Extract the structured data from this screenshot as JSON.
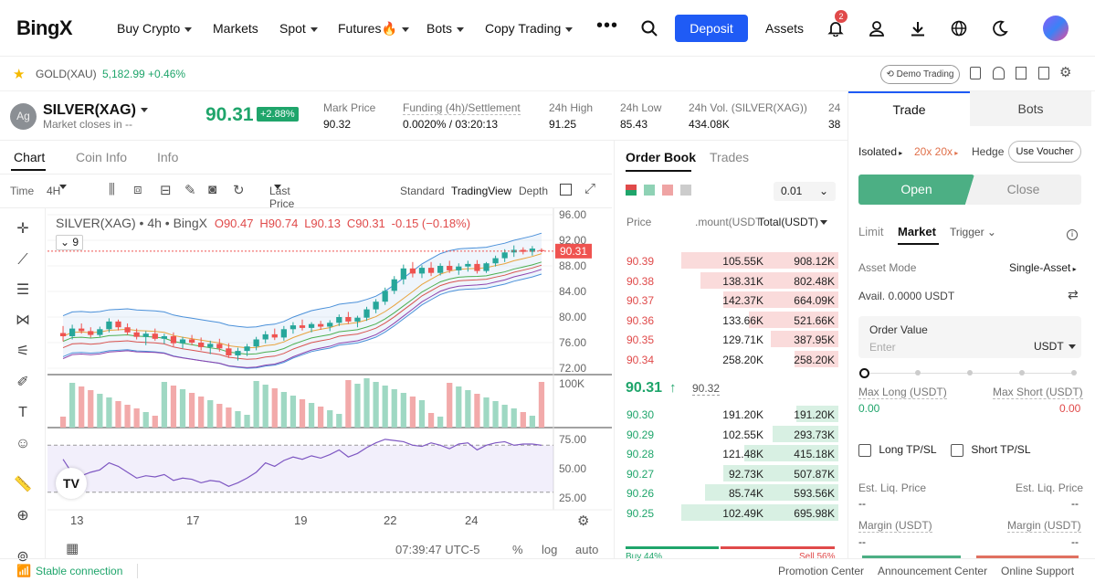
{
  "nav": {
    "logo": "BingX",
    "buy_crypto": "Buy Crypto",
    "markets": "Markets",
    "spot": "Spot",
    "futures": "Futures🔥",
    "bots": "Bots",
    "copy_trading": "Copy Trading",
    "deposit": "Deposit",
    "assets": "Assets",
    "notif_count": "2"
  },
  "ticker": {
    "symbol": "GOLD(XAU)",
    "price": "5,182.99",
    "change": "+0.46%",
    "demo": "Demo Trading"
  },
  "header": {
    "symbol": "SILVER(XAG)",
    "subtitle": "Market closes in  --",
    "price": "90.31",
    "change": "+2.88%",
    "mark_label": "Mark Price",
    "mark_value": "90.32",
    "funding_label": "Funding (4h)/Settlement",
    "funding_value": "0.0020% / 03:20:13",
    "high_label": "24h High",
    "high_value": "91.25",
    "low_label": "24h Low",
    "low_value": "85.43",
    "vol_label": "24h Vol. (SILVER(XAG))",
    "vol_value": "434.08K",
    "extra_label": "24",
    "extra_value": "38"
  },
  "chart_tabs": {
    "chart": "Chart",
    "coin_info": "Coin Info",
    "info": "Info"
  },
  "chart_toolbar": {
    "time_label": "Time",
    "interval": "4H",
    "price_type": "Last Price",
    "standard": "Standard",
    "tradingview": "TradingView",
    "depth": "Depth"
  },
  "chart_legend": {
    "title": "SILVER(XAG) • 4h • BingX",
    "o": "O90.47",
    "h": "H90.74",
    "l": "L90.13",
    "c": "C90.31",
    "chg": "-0.15 (−0.18%)",
    "indicator_count": "9",
    "volume_label": "100K",
    "timestamp": "07:39:47 UTC-5",
    "pct": "%",
    "log": "log",
    "auto": "auto",
    "price_tag": "90.31"
  },
  "chart_data": {
    "type": "candlestick",
    "price_axis": [
      "96.00",
      "92.00",
      "88.00",
      "84.00",
      "80.00",
      "76.00",
      "72.00"
    ],
    "rsi_axis": [
      "75.00",
      "50.00",
      "25.00"
    ],
    "x_ticks": [
      "13",
      "17",
      "19",
      "22",
      "24"
    ],
    "ylim": [
      71,
      97
    ],
    "candles": [
      [
        77.5,
        78.6,
        76.2,
        77.0
      ],
      [
        77.0,
        78.8,
        76.5,
        78.2
      ],
      [
        78.2,
        79.0,
        77.4,
        77.8
      ],
      [
        77.8,
        78.4,
        76.8,
        77.2
      ],
      [
        77.2,
        78.5,
        76.9,
        78.1
      ],
      [
        78.1,
        79.8,
        77.6,
        79.3
      ],
      [
        79.3,
        79.6,
        77.9,
        78.4
      ],
      [
        78.4,
        79.0,
        77.2,
        77.6
      ],
      [
        77.6,
        78.2,
        76.5,
        76.9
      ],
      [
        76.9,
        77.8,
        75.6,
        77.4
      ],
      [
        77.4,
        78.2,
        76.3,
        76.6
      ],
      [
        76.6,
        77.4,
        75.8,
        77.0
      ],
      [
        77.0,
        77.6,
        75.4,
        75.9
      ],
      [
        75.9,
        76.9,
        75.1,
        76.5
      ],
      [
        76.5,
        77.2,
        75.6,
        76.0
      ],
      [
        76.0,
        76.8,
        74.8,
        75.3
      ],
      [
        75.3,
        76.3,
        74.2,
        75.8
      ],
      [
        75.8,
        76.6,
        74.6,
        75.1
      ],
      [
        75.1,
        75.9,
        73.6,
        74.0
      ],
      [
        74.0,
        75.2,
        73.2,
        74.7
      ],
      [
        74.7,
        75.8,
        73.9,
        75.4
      ],
      [
        75.4,
        76.9,
        74.8,
        76.5
      ],
      [
        76.5,
        77.8,
        75.9,
        77.3
      ],
      [
        77.3,
        78.2,
        76.4,
        76.8
      ],
      [
        76.8,
        78.6,
        76.3,
        78.1
      ],
      [
        78.1,
        79.2,
        77.4,
        78.7
      ],
      [
        78.7,
        79.6,
        77.9,
        78.3
      ],
      [
        78.3,
        79.2,
        77.6,
        78.9
      ],
      [
        78.9,
        79.4,
        78.0,
        78.5
      ],
      [
        78.5,
        79.5,
        77.8,
        79.1
      ],
      [
        79.1,
        80.4,
        78.6,
        80.0
      ],
      [
        80.0,
        80.8,
        78.9,
        79.3
      ],
      [
        79.3,
        80.2,
        78.4,
        79.9
      ],
      [
        79.9,
        81.6,
        79.4,
        81.2
      ],
      [
        81.2,
        82.8,
        80.6,
        82.4
      ],
      [
        82.4,
        84.6,
        81.9,
        84.1
      ],
      [
        84.1,
        86.4,
        83.6,
        85.9
      ],
      [
        85.9,
        88.2,
        85.1,
        87.6
      ],
      [
        87.6,
        88.6,
        86.2,
        86.8
      ],
      [
        86.8,
        88.1,
        86.1,
        87.7
      ],
      [
        87.7,
        88.6,
        86.4,
        86.9
      ],
      [
        86.9,
        88.4,
        86.5,
        88.0
      ],
      [
        88.0,
        88.8,
        86.9,
        87.3
      ],
      [
        87.3,
        88.4,
        86.6,
        87.9
      ],
      [
        87.9,
        88.8,
        87.1,
        88.3
      ],
      [
        88.3,
        88.9,
        86.8,
        87.2
      ],
      [
        87.2,
        88.6,
        86.9,
        88.4
      ],
      [
        88.4,
        89.6,
        87.9,
        89.2
      ],
      [
        89.2,
        90.6,
        88.6,
        90.1
      ],
      [
        90.1,
        91.2,
        89.4,
        90.5
      ],
      [
        90.5,
        90.9,
        89.8,
        90.2
      ],
      [
        90.2,
        91.1,
        89.6,
        90.7
      ],
      [
        90.47,
        90.74,
        90.13,
        90.31
      ]
    ],
    "rsi": [
      58,
      46,
      44,
      47,
      49,
      55,
      52,
      47,
      42,
      44,
      43,
      45,
      40,
      42,
      41,
      38,
      40,
      39,
      35,
      38,
      42,
      47,
      55,
      52,
      57,
      60,
      58,
      61,
      59,
      62,
      66,
      60,
      63,
      68,
      72,
      75,
      74,
      73,
      70,
      69,
      72,
      70,
      67,
      71,
      72,
      66,
      70,
      72,
      73,
      70,
      71,
      71,
      70
    ]
  },
  "order_book": {
    "tab_order_book": "Order Book",
    "tab_trades": "Trades",
    "precision": "0.01",
    "col_price": "Price",
    "col_amount": ".mount(USDT",
    "col_total": "Total(USDT)",
    "asks": [
      {
        "price": "90.39",
        "amount": "105.55K",
        "total": "908.12K",
        "w": 1.0
      },
      {
        "price": "90.38",
        "amount": "138.31K",
        "total": "802.48K",
        "w": 0.88
      },
      {
        "price": "90.37",
        "amount": "142.37K",
        "total": "664.09K",
        "w": 0.73
      },
      {
        "price": "90.36",
        "amount": "133.66K",
        "total": "521.66K",
        "w": 0.57
      },
      {
        "price": "90.35",
        "amount": "129.71K",
        "total": "387.95K",
        "w": 0.43
      },
      {
        "price": "90.34",
        "amount": "258.20K",
        "total": "258.20K",
        "w": 0.28
      }
    ],
    "last_price": "90.31",
    "mark_price": "90.32",
    "bids": [
      {
        "price": "90.30",
        "amount": "191.20K",
        "total": "191.20K",
        "w": 0.27
      },
      {
        "price": "90.29",
        "amount": "102.55K",
        "total": "293.73K",
        "w": 0.42
      },
      {
        "price": "90.28",
        "amount": "121.48K",
        "total": "415.18K",
        "w": 0.6
      },
      {
        "price": "90.27",
        "amount": "92.73K",
        "total": "507.87K",
        "w": 0.73
      },
      {
        "price": "90.26",
        "amount": "85.74K",
        "total": "593.56K",
        "w": 0.85
      },
      {
        "price": "90.25",
        "amount": "102.49K",
        "total": "695.98K",
        "w": 1.0
      }
    ],
    "buy_pct": "Buy 44%",
    "sell_pct": "Sell 56%"
  },
  "trade": {
    "tab_trade": "Trade",
    "tab_bots": "Bots",
    "isolated": "Isolated",
    "leverage": "20x 20x",
    "hedge": "Hedge",
    "voucher": "Use Voucher",
    "open": "Open",
    "close": "Close",
    "limit": "Limit",
    "market": "Market",
    "trigger": "Trigger",
    "asset_mode_label": "Asset Mode",
    "asset_mode_value": "Single-Asset",
    "avail": "Avail. 0.0000 USDT",
    "order_value_label": "Order Value",
    "order_value_placeholder": "Enter",
    "currency": "USDT",
    "max_long_label": "Max Long (USDT)",
    "max_long_value": "0.00",
    "max_short_label": "Max Short (USDT)",
    "max_short_value": "0.00",
    "long_tpsl": "Long TP/SL",
    "short_tpsl": "Short TP/SL",
    "est_liq_label": "Est. Liq. Price",
    "est_liq_left": "--",
    "est_liq_right": "--",
    "margin_label": "Margin (USDT)",
    "margin_left": "--",
    "margin_right": "--"
  },
  "footer": {
    "connection": "Stable connection",
    "promotion": "Promotion Center",
    "announcement": "Announcement Center",
    "support": "Online Support"
  },
  "colors": {
    "accent": "#1f5bf5",
    "green": "#1fa56b",
    "red": "#e04a4a",
    "open_btn": "#4caf84"
  }
}
